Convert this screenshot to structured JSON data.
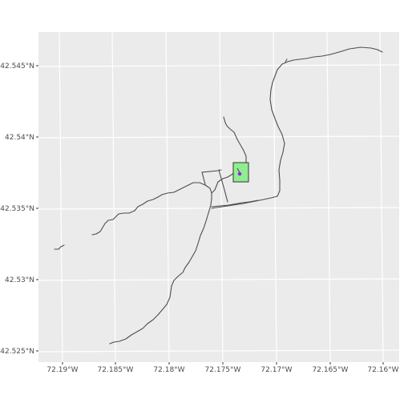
{
  "map": {
    "colors": {
      "panel": "#ebebeb",
      "grid": "#ffffff",
      "road": "#4d4d4d",
      "box_fill": "#90ee90",
      "box_stroke": "#333333",
      "point": "#a020f0",
      "label": "#4d4d4d"
    },
    "lat_labels": [
      "42.545°N",
      "42.54°N",
      "42.535°N",
      "42.53°N",
      "42.525°N"
    ],
    "lon_labels": [
      "72.19°W",
      "72.185°W",
      "72.18°W",
      "72.175°W",
      "72.17°W",
      "72.165°W",
      "72.16°W"
    ],
    "features": {
      "roads": "road network lines",
      "highlight_box": "study area box",
      "point": "site marker"
    }
  }
}
